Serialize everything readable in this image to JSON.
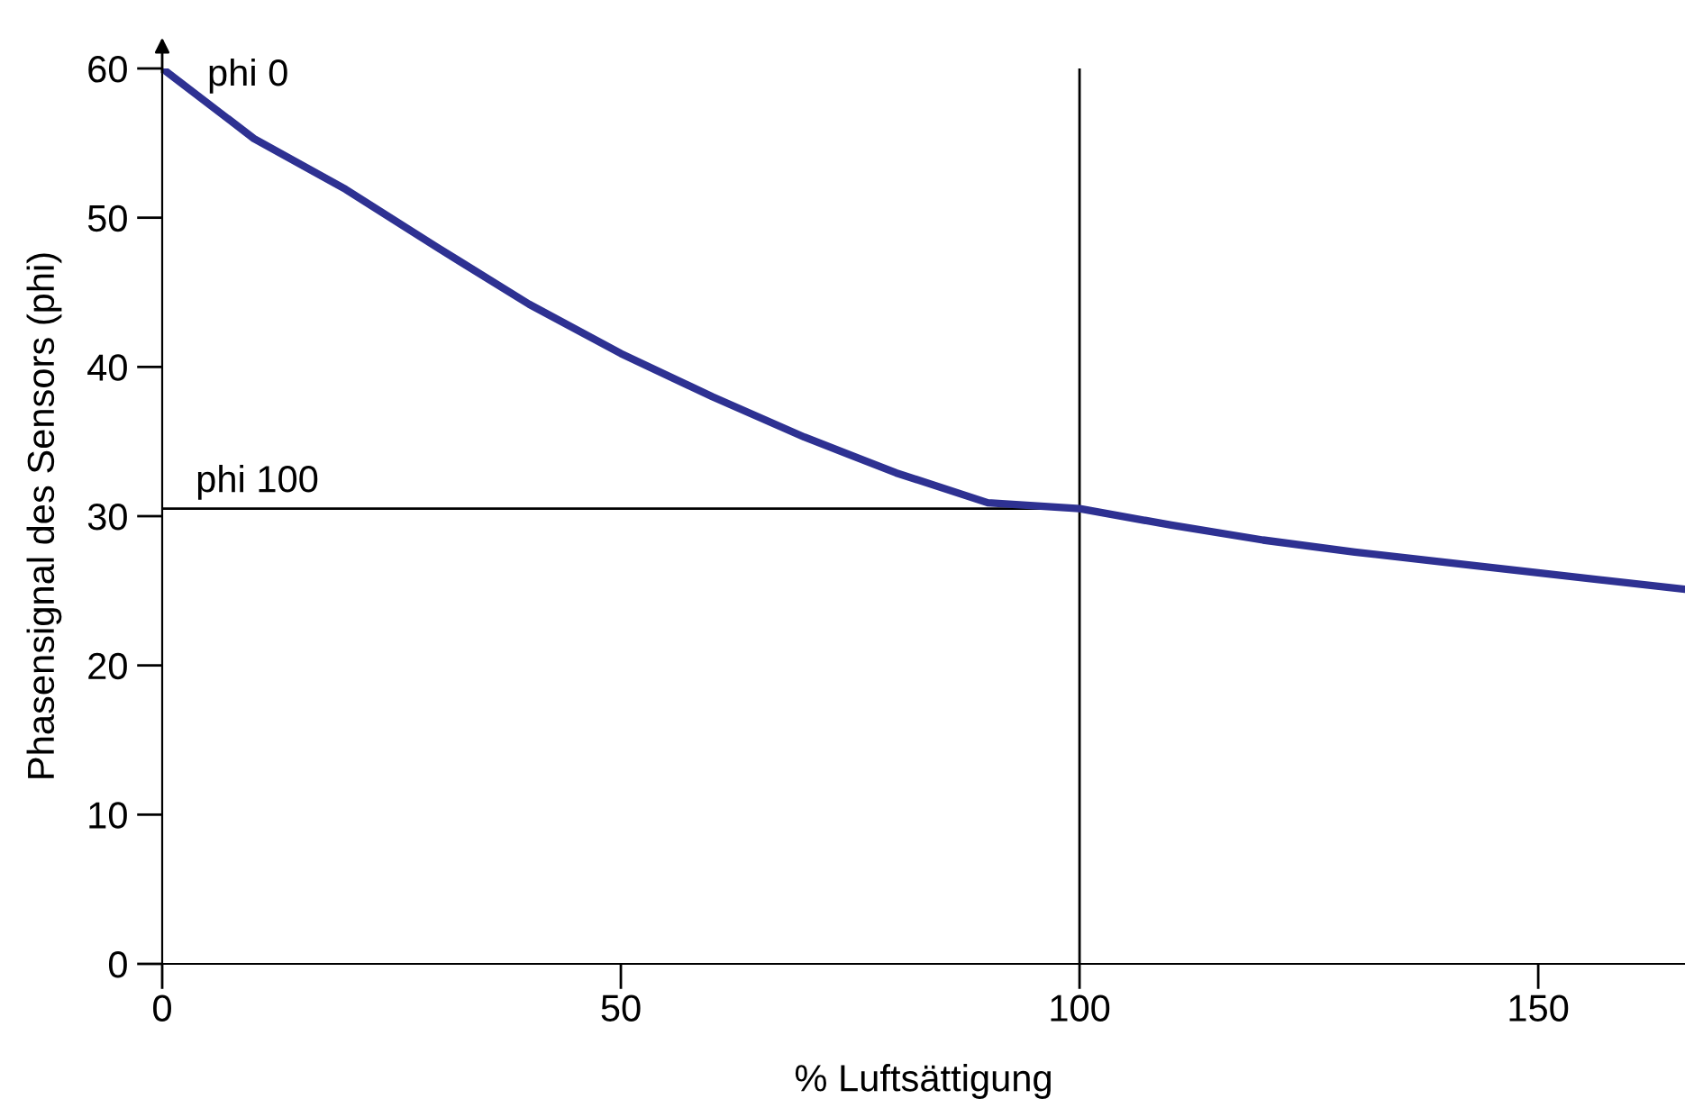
{
  "chart_data": {
    "type": "line",
    "xlabel": "% Luftsättigung",
    "ylabel": "Phasensignal des Sensors (phi)",
    "x": [
      0,
      10,
      20,
      30,
      40,
      50,
      60,
      70,
      80,
      90,
      100,
      110,
      120,
      130,
      140,
      150,
      166
    ],
    "series": [
      {
        "color": "#2e3192",
        "values": [
          60,
          55.3,
          51.9,
          48.0,
          44.2,
          40.9,
          38.0,
          35.3,
          32.9,
          30.9,
          30.5,
          29.4,
          28.4,
          27.6,
          26.9,
          26.2,
          25.1
        ]
      }
    ],
    "xlim": [
      0,
      166
    ],
    "ylim": [
      0,
      60
    ],
    "xticks": [
      0,
      50,
      100,
      150
    ],
    "yticks": [
      0,
      10,
      20,
      30,
      40,
      50,
      60
    ],
    "grid": false,
    "legend": false,
    "marker": "none",
    "line_style": "solid",
    "ref_lines": [
      {
        "axis": "x",
        "value": 100,
        "color": "#000000"
      },
      {
        "axis": "y",
        "value": 30.5,
        "label": "phi 100",
        "color": "#000000"
      }
    ],
    "annotations": [
      {
        "text": "phi 0",
        "x": 0,
        "y": 60
      }
    ]
  }
}
